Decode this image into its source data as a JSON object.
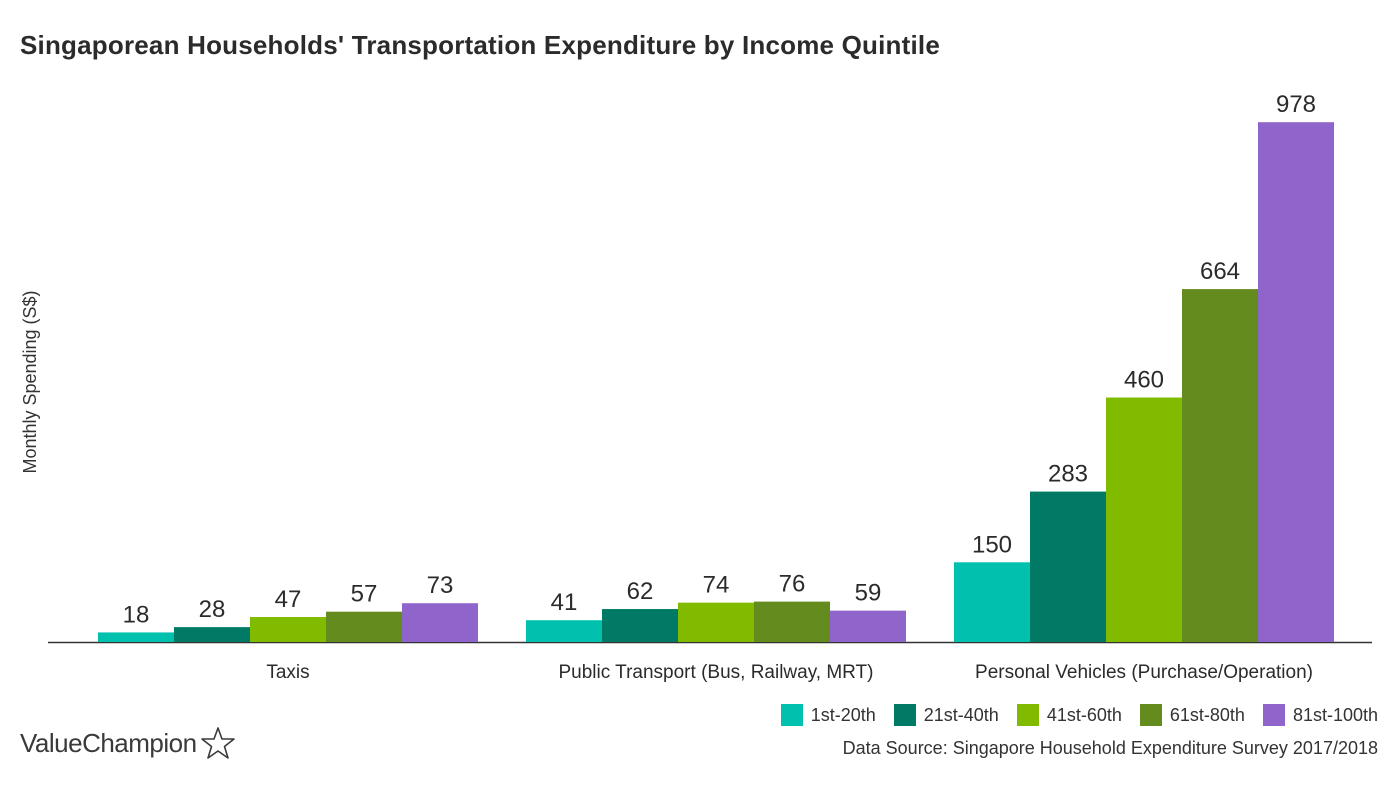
{
  "chart_data": {
    "type": "bar",
    "title": "Singaporean Households' Transportation Expenditure by Income Quintile",
    "xlabel": "",
    "ylabel": "Monthly Spending (S$)",
    "ylim": [
      0,
      1000
    ],
    "grid": false,
    "legend_position": "bottom-right",
    "categories": [
      "Taxis",
      "Public Transport (Bus, Railway, MRT)",
      "Personal Vehicles (Purchase/Operation)"
    ],
    "series": [
      {
        "name": "1st-20th",
        "color": "#00c0ae",
        "values": [
          18,
          41,
          150
        ]
      },
      {
        "name": "21st-40th",
        "color": "#007a64",
        "values": [
          28,
          62,
          283
        ]
      },
      {
        "name": "41st-60th",
        "color": "#80bb00",
        "values": [
          47,
          74,
          460
        ]
      },
      {
        "name": "61st-80th",
        "color": "#638b1e",
        "values": [
          57,
          76,
          664
        ]
      },
      {
        "name": "81st-100th",
        "color": "#9065cb",
        "values": [
          73,
          59,
          978
        ]
      }
    ]
  },
  "footer": {
    "source": "Data Source: Singapore Household Expenditure Survey 2017/2018",
    "brand": "ValueChampion",
    "brand_icon": "star-icon"
  }
}
